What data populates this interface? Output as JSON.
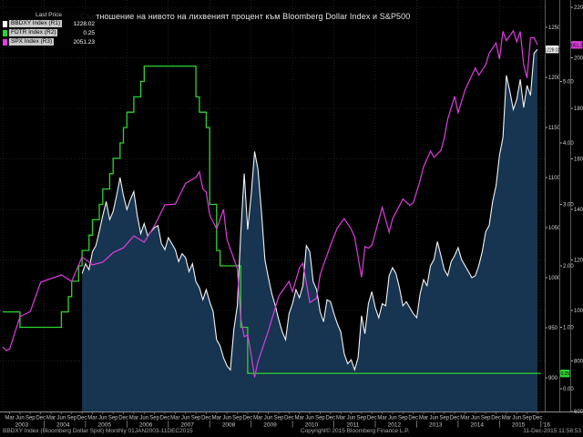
{
  "title": "Съотношение на нивото на лихвеният процент към Bloomberg Dollar Index и S&P500",
  "legend": {
    "header": "Last Price",
    "series": [
      {
        "id": "bbdxy",
        "label": "BBDXY Index (R1)",
        "value": "1228.02",
        "color": "#f4f4f4"
      },
      {
        "id": "fdtr",
        "label": "FDTR Index  (R2)",
        "value": "0.25",
        "color": "#2ed42e"
      },
      {
        "id": "spx",
        "label": "SPX Index   (R3)",
        "value": "2051.23",
        "color": "#e03ce0"
      }
    ]
  },
  "footer": {
    "left": "BBDXY Index (Bloomberg Dollar Spot)  Monthly 01JAN2003-11DEC2015",
    "copyright": "Copyright© 2015 Bloomberg Finance L.P.",
    "timestamp": "11-Dec-2015 11:58:53"
  },
  "colors": {
    "background": "#000000",
    "grid": "#2d2d2d",
    "axis_line": "#565656",
    "axis_text": "#d8d8d8",
    "bottom_line": "#8f8f8f",
    "bbdxy": "#f4f4f4",
    "bbdxy_fill": "#173450",
    "fdtr": "#2ed42e",
    "spx": "#e03ce0"
  },
  "chart_data": {
    "type": "line",
    "title": "Съотношение на нивото на лихвеният процент към Bloomberg Dollar Index и S&P500",
    "grid": true,
    "legend_position": "top-left",
    "xaxis": {
      "range": [
        "2003-01",
        "2015-12"
      ],
      "quarter_labels": [
        "Mar",
        "Jun",
        "Sep",
        "Dec"
      ],
      "quarter_months": [
        2,
        5,
        8,
        11
      ],
      "years": [
        2003,
        2004,
        2005,
        2006,
        2007,
        2008,
        2009,
        2010,
        2011,
        2012,
        2013,
        2014,
        2015
      ],
      "extra_label": "'16"
    },
    "axes": {
      "R1": {
        "side": "right",
        "min": 866.4,
        "max": 1270,
        "ticks": [
          900,
          950,
          1000,
          1050,
          1100,
          1150,
          1200,
          1250
        ],
        "tick_labels": [
          "900",
          "950",
          "1000",
          "1050",
          "1100",
          "1150",
          "1200",
          "1250"
        ]
      },
      "R2": {
        "side": "right",
        "min": -0.37,
        "max": 6.207,
        "ticks": [
          0,
          1,
          2,
          3,
          4,
          5
        ],
        "tick_labels": [
          "0.00",
          "1.00",
          "2.00",
          "3.00",
          "4.00",
          "5.00"
        ]
      },
      "R3": {
        "side": "right",
        "min": 600,
        "max": 2200,
        "ticks": [
          600,
          800,
          1000,
          1200,
          1400,
          1600,
          1800,
          2000,
          2200
        ],
        "tick_labels": [
          "600",
          "800",
          "1000",
          "1200",
          "1400",
          "1600",
          "1800",
          "2000",
          "2200"
        ]
      }
    },
    "series": [
      {
        "id": "bbdxy",
        "name": "BBDXY Index",
        "axis": "R1",
        "style": "area-line",
        "last_price": 1228.02,
        "last_label": "1228.02",
        "data": [
          [
            "2004-12",
            1004
          ],
          [
            "2005-01",
            1014
          ],
          [
            "2005-02",
            1008
          ],
          [
            "2005-03",
            1026
          ],
          [
            "2005-04",
            1032
          ],
          [
            "2005-05",
            1046
          ],
          [
            "2005-06",
            1062
          ],
          [
            "2005-07",
            1076
          ],
          [
            "2005-08",
            1058
          ],
          [
            "2005-09",
            1066
          ],
          [
            "2005-10",
            1082
          ],
          [
            "2005-11",
            1100
          ],
          [
            "2005-12",
            1082
          ],
          [
            "2006-01",
            1068
          ],
          [
            "2006-02",
            1078
          ],
          [
            "2006-03",
            1086
          ],
          [
            "2006-04",
            1062
          ],
          [
            "2006-05",
            1044
          ],
          [
            "2006-06",
            1054
          ],
          [
            "2006-07",
            1042
          ],
          [
            "2006-08",
            1046
          ],
          [
            "2006-09",
            1050
          ],
          [
            "2006-10",
            1052
          ],
          [
            "2006-11",
            1034
          ],
          [
            "2006-12",
            1028
          ],
          [
            "2007-01",
            1040
          ],
          [
            "2007-02",
            1034
          ],
          [
            "2007-03",
            1028
          ],
          [
            "2007-04",
            1016
          ],
          [
            "2007-05",
            1024
          ],
          [
            "2007-06",
            1020
          ],
          [
            "2007-07",
            1006
          ],
          [
            "2007-08",
            1014
          ],
          [
            "2007-09",
            996
          ],
          [
            "2007-10",
            990
          ],
          [
            "2007-11",
            978
          ],
          [
            "2007-12",
            988
          ],
          [
            "2008-01",
            976
          ],
          [
            "2008-02",
            966
          ],
          [
            "2008-03",
            938
          ],
          [
            "2008-04",
            932
          ],
          [
            "2008-05",
            920
          ],
          [
            "2008-06",
            912
          ],
          [
            "2008-07",
            908
          ],
          [
            "2008-08",
            948
          ],
          [
            "2008-09",
            972
          ],
          [
            "2008-10",
            1044
          ],
          [
            "2008-11",
            1104
          ],
          [
            "2008-12",
            1048
          ],
          [
            "2009-01",
            1082
          ],
          [
            "2009-02",
            1126
          ],
          [
            "2009-03",
            1108
          ],
          [
            "2009-04",
            1066
          ],
          [
            "2009-05",
            1018
          ],
          [
            "2009-06",
            1000
          ],
          [
            "2009-07",
            984
          ],
          [
            "2009-08",
            972
          ],
          [
            "2009-09",
            958
          ],
          [
            "2009-10",
            946
          ],
          [
            "2009-11",
            938
          ],
          [
            "2009-12",
            964
          ],
          [
            "2010-01",
            974
          ],
          [
            "2010-02",
            988
          ],
          [
            "2010-03",
            980
          ],
          [
            "2010-04",
            992
          ],
          [
            "2010-05",
            1032
          ],
          [
            "2010-06",
            1026
          ],
          [
            "2010-07",
            996
          ],
          [
            "2010-08",
            988
          ],
          [
            "2010-09",
            966
          ],
          [
            "2010-10",
            956
          ],
          [
            "2010-11",
            978
          ],
          [
            "2010-12",
            976
          ],
          [
            "2011-01",
            964
          ],
          [
            "2011-02",
            954
          ],
          [
            "2011-03",
            946
          ],
          [
            "2011-04",
            924
          ],
          [
            "2011-05",
            914
          ],
          [
            "2011-06",
            918
          ],
          [
            "2011-07",
            908
          ],
          [
            "2011-08",
            920
          ],
          [
            "2011-09",
            962
          ],
          [
            "2011-10",
            944
          ],
          [
            "2011-11",
            974
          ],
          [
            "2011-12",
            986
          ],
          [
            "2012-01",
            970
          ],
          [
            "2012-02",
            960
          ],
          [
            "2012-03",
            974
          ],
          [
            "2012-04",
            972
          ],
          [
            "2012-05",
            1002
          ],
          [
            "2012-06",
            1010
          ],
          [
            "2012-07",
            1004
          ],
          [
            "2012-08",
            990
          ],
          [
            "2012-09",
            972
          ],
          [
            "2012-10",
            976
          ],
          [
            "2012-11",
            970
          ],
          [
            "2012-12",
            964
          ],
          [
            "2013-01",
            960
          ],
          [
            "2013-02",
            984
          ],
          [
            "2013-03",
            998
          ],
          [
            "2013-04",
            992
          ],
          [
            "2013-05",
            1012
          ],
          [
            "2013-06",
            1018
          ],
          [
            "2013-07",
            1036
          ],
          [
            "2013-08",
            1022
          ],
          [
            "2013-09",
            1008
          ],
          [
            "2013-10",
            1002
          ],
          [
            "2013-11",
            1016
          ],
          [
            "2013-12",
            1022
          ],
          [
            "2014-01",
            1030
          ],
          [
            "2014-02",
            1018
          ],
          [
            "2014-03",
            1012
          ],
          [
            "2014-04",
            1006
          ],
          [
            "2014-05",
            1000
          ],
          [
            "2014-06",
            1002
          ],
          [
            "2014-07",
            1012
          ],
          [
            "2014-08",
            1026
          ],
          [
            "2014-09",
            1046
          ],
          [
            "2014-10",
            1052
          ],
          [
            "2014-11",
            1076
          ],
          [
            "2014-12",
            1092
          ],
          [
            "2015-01",
            1122
          ],
          [
            "2015-02",
            1140
          ],
          [
            "2015-03",
            1202
          ],
          [
            "2015-04",
            1186
          ],
          [
            "2015-05",
            1168
          ],
          [
            "2015-06",
            1178
          ],
          [
            "2015-07",
            1198
          ],
          [
            "2015-08",
            1170
          ],
          [
            "2015-09",
            1192
          ],
          [
            "2015-10",
            1182
          ],
          [
            "2015-11",
            1224
          ],
          [
            "2015-12",
            1228.02
          ]
        ]
      },
      {
        "id": "fdtr",
        "name": "FDTR Index",
        "axis": "R2",
        "style": "step",
        "last_price": 0.25,
        "last_label": "0.25",
        "data": [
          [
            "2003-01",
            1.25
          ],
          [
            "2003-06",
            1.0
          ],
          [
            "2004-06",
            1.25
          ],
          [
            "2004-08",
            1.5
          ],
          [
            "2004-09",
            1.75
          ],
          [
            "2004-11",
            2.0
          ],
          [
            "2004-12",
            2.25
          ],
          [
            "2005-02",
            2.5
          ],
          [
            "2005-03",
            2.75
          ],
          [
            "2005-05",
            3.0
          ],
          [
            "2005-06",
            3.25
          ],
          [
            "2005-08",
            3.5
          ],
          [
            "2005-09",
            3.75
          ],
          [
            "2005-11",
            4.0
          ],
          [
            "2005-12",
            4.25
          ],
          [
            "2006-01",
            4.5
          ],
          [
            "2006-03",
            4.75
          ],
          [
            "2006-05",
            5.0
          ],
          [
            "2006-06",
            5.25
          ],
          [
            "2007-09",
            4.75
          ],
          [
            "2007-10",
            4.5
          ],
          [
            "2007-12",
            4.25
          ],
          [
            "2008-01",
            3.0
          ],
          [
            "2008-03",
            2.25
          ],
          [
            "2008-04",
            2.0
          ],
          [
            "2008-10",
            1.0
          ],
          [
            "2008-12",
            0.25
          ],
          [
            "2016-01",
            0.25
          ]
        ]
      },
      {
        "id": "spx",
        "name": "SPX Index",
        "axis": "R3",
        "style": "line",
        "last_price": 2051.23,
        "last_label": "2051.23",
        "data": [
          [
            "2003-01",
            856
          ],
          [
            "2003-02",
            841
          ],
          [
            "2003-03",
            848
          ],
          [
            "2003-06",
            975
          ],
          [
            "2003-09",
            996
          ],
          [
            "2003-12",
            1112
          ],
          [
            "2004-03",
            1126
          ],
          [
            "2004-06",
            1141
          ],
          [
            "2004-09",
            1115
          ],
          [
            "2004-12",
            1212
          ],
          [
            "2005-03",
            1181
          ],
          [
            "2005-06",
            1191
          ],
          [
            "2005-09",
            1229
          ],
          [
            "2005-12",
            1248
          ],
          [
            "2006-03",
            1295
          ],
          [
            "2006-06",
            1270
          ],
          [
            "2006-09",
            1336
          ],
          [
            "2006-12",
            1418
          ],
          [
            "2007-03",
            1421
          ],
          [
            "2007-06",
            1503
          ],
          [
            "2007-09",
            1527
          ],
          [
            "2007-10",
            1549
          ],
          [
            "2007-11",
            1481
          ],
          [
            "2007-12",
            1468
          ],
          [
            "2008-01",
            1378
          ],
          [
            "2008-03",
            1323
          ],
          [
            "2008-05",
            1400
          ],
          [
            "2008-06",
            1280
          ],
          [
            "2008-09",
            1166
          ],
          [
            "2008-10",
            969
          ],
          [
            "2008-11",
            896
          ],
          [
            "2008-12",
            903
          ],
          [
            "2009-01",
            826
          ],
          [
            "2009-02",
            735
          ],
          [
            "2009-03",
            798
          ],
          [
            "2009-06",
            919
          ],
          [
            "2009-09",
            1057
          ],
          [
            "2009-12",
            1115
          ],
          [
            "2010-01",
            1074
          ],
          [
            "2010-03",
            1169
          ],
          [
            "2010-04",
            1187
          ],
          [
            "2010-06",
            1031
          ],
          [
            "2010-08",
            1049
          ],
          [
            "2010-09",
            1141
          ],
          [
            "2010-12",
            1258
          ],
          [
            "2011-02",
            1327
          ],
          [
            "2011-04",
            1364
          ],
          [
            "2011-06",
            1321
          ],
          [
            "2011-07",
            1292
          ],
          [
            "2011-09",
            1131
          ],
          [
            "2011-10",
            1253
          ],
          [
            "2011-11",
            1247
          ],
          [
            "2011-12",
            1258
          ],
          [
            "2012-03",
            1408
          ],
          [
            "2012-05",
            1310
          ],
          [
            "2012-06",
            1362
          ],
          [
            "2012-09",
            1441
          ],
          [
            "2012-11",
            1416
          ],
          [
            "2012-12",
            1426
          ],
          [
            "2013-02",
            1515
          ],
          [
            "2013-03",
            1569
          ],
          [
            "2013-05",
            1631
          ],
          [
            "2013-06",
            1606
          ],
          [
            "2013-08",
            1633
          ],
          [
            "2013-09",
            1682
          ],
          [
            "2013-10",
            1757
          ],
          [
            "2013-12",
            1848
          ],
          [
            "2014-01",
            1783
          ],
          [
            "2014-03",
            1872
          ],
          [
            "2014-06",
            1960
          ],
          [
            "2014-07",
            1931
          ],
          [
            "2014-09",
            1972
          ],
          [
            "2014-10",
            2018
          ],
          [
            "2014-12",
            2059
          ],
          [
            "2015-01",
            1995
          ],
          [
            "2015-02",
            2105
          ],
          [
            "2015-03",
            2068
          ],
          [
            "2015-05",
            2107
          ],
          [
            "2015-06",
            2063
          ],
          [
            "2015-07",
            2104
          ],
          [
            "2015-08",
            1972
          ],
          [
            "2015-09",
            1920
          ],
          [
            "2015-10",
            2079
          ],
          [
            "2015-11",
            2080
          ],
          [
            "2015-12",
            2051.23
          ]
        ]
      }
    ]
  }
}
